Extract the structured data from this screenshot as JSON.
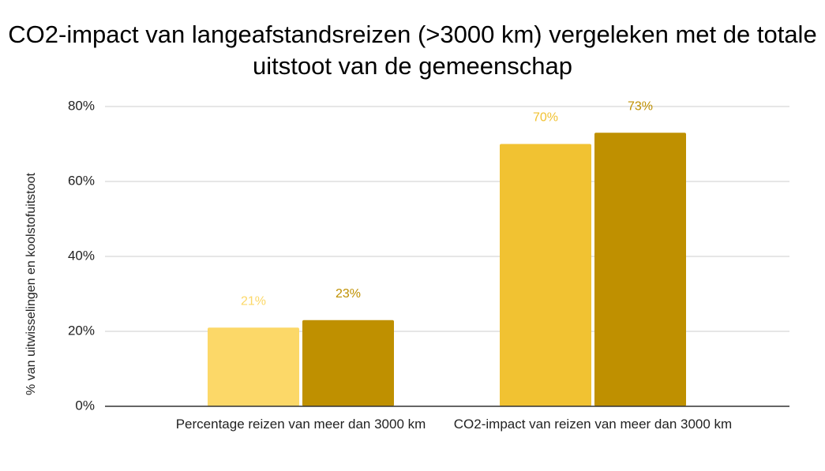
{
  "chart_data": {
    "type": "bar",
    "title": "CO2-impact van langeafstandsreizen (>3000 km) vergeleken met de totale uitstoot van de gemeenschap",
    "y_label": "% van uitwisselingen en koolstofuitstoot",
    "categories": [
      "Percentage reizen van meer dan 3000 km",
      "CO2-impact van reizen van meer dan 3000 km"
    ],
    "series": [
      {
        "colors": [
          "#fcd868",
          "#f1c232"
        ],
        "values": [
          21,
          70
        ],
        "value_labels": [
          "21%",
          "70%"
        ]
      },
      {
        "color": "#bf9000",
        "values": [
          23,
          73
        ],
        "value_labels": [
          "23%",
          "73%"
        ]
      }
    ],
    "ylim": [
      0,
      80
    ],
    "yticks": [
      {
        "value": 0,
        "label": "0%"
      },
      {
        "value": 20,
        "label": "20%"
      },
      {
        "value": 40,
        "label": "40%"
      },
      {
        "value": 60,
        "label": "60%"
      },
      {
        "value": 80,
        "label": "80%"
      }
    ],
    "grid": true
  }
}
